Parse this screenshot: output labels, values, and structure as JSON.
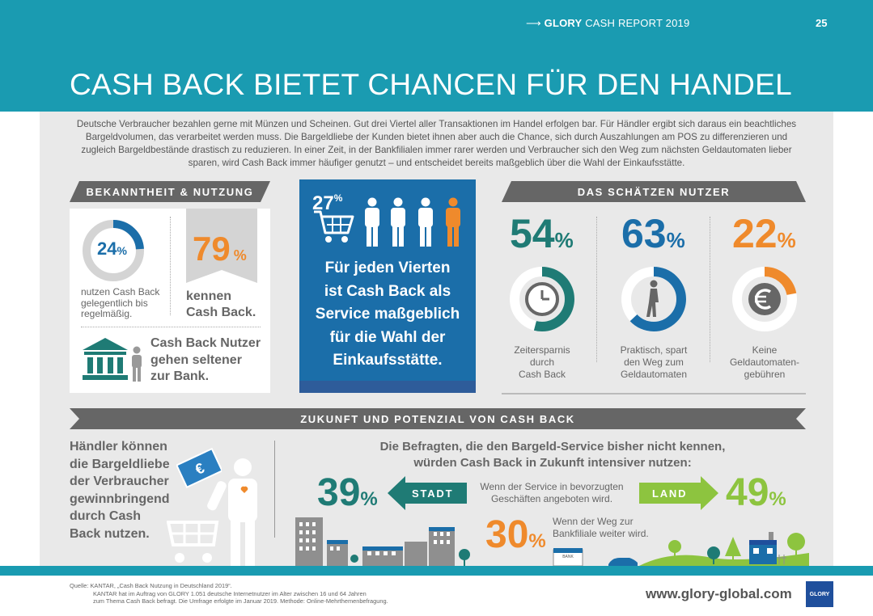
{
  "header": {
    "arrow": "⟶",
    "report_brand": "GLORY",
    "report_rest": "CASH REPORT 2019",
    "page_number": "25",
    "title": "CASH BACK BIETET CHANCEN FÜR DEN HANDEL"
  },
  "intro": "Deutsche Verbraucher bezahlen gerne mit Münzen und Scheinen. Gut drei Viertel aller Transaktionen im Handel erfolgen bar. Für Händler ergibt sich daraus ein beachtliches Bargeldvolumen, das verarbeitet werden muss. Die Bargeldliebe der Kunden bietet ihnen aber auch die Chance, sich durch Auszahlungen am POS zu differenzieren und zugleich Bargeldbestände drastisch zu reduzieren. In einer Zeit, in der Bankfilialen immer rarer werden und Verbraucher sich den Weg zum nächsten Geldautomaten lieber sparen, wird Cash Back immer häufiger genutzt – und entscheidet bereits maßgeblich über die Wahl der Einkaufsstätte.",
  "bekanntheit": {
    "heading": "BEKANNTHEIT & NUTZUNG",
    "usage_pct": "24",
    "usage_fraction": 0.24,
    "usage_pct_sign": "%",
    "usage_text": [
      "nutzen Cash Back",
      "gelegentlich bis",
      "regelmäßig."
    ],
    "known_pct": "79",
    "known_pct_sign": "%",
    "known_text": [
      "kennen",
      "Cash Back."
    ],
    "bank_text": [
      "Cash Back Nutzer",
      "gehen seltener",
      "zur Bank."
    ]
  },
  "blue_box": {
    "pct": "27",
    "pct_sign": "%",
    "text": [
      "Für jeden Vierten",
      "ist Cash Back als",
      "Service maßgeblich",
      "für die Wahl der",
      "Einkaufsstätte."
    ]
  },
  "schaetzen": {
    "heading": "DAS SCHÄTZEN NUTZER",
    "items": [
      {
        "pct": "54",
        "sign": "%",
        "fraction": 0.54,
        "color": "#1f7b75",
        "icon": "clock-icon",
        "label": [
          "Zeitersparnis",
          "durch",
          "Cash Back"
        ]
      },
      {
        "pct": "63",
        "sign": "%",
        "fraction": 0.63,
        "color": "#1b6ea9",
        "icon": "walking-person-icon",
        "label": [
          "Praktisch, spart",
          "den Weg zum",
          "Geldautomaten"
        ]
      },
      {
        "pct": "22",
        "sign": "%",
        "fraction": 0.22,
        "color": "#ef8a2c",
        "icon": "euro-icon",
        "label": [
          "Keine",
          "Geldautomaten-",
          "gebühren"
        ]
      }
    ]
  },
  "zukunft": {
    "heading": "ZUKUNFT UND POTENZIAL VON CASH BACK",
    "left_text": [
      "Händler können",
      "die Bargeldliebe",
      "der Verbraucher",
      "gewinnbringend",
      "durch Cash",
      "Back nutzen."
    ],
    "headline": [
      "Die Befragten, die den Bargeld-Service bisher nicht kennen,",
      "würden Cash Back in Zukunft intensiver nutzen:"
    ],
    "stadt_pct": "39",
    "stadt_label": "STADT",
    "land_pct": "49",
    "land_label": "LAND",
    "pct_sign": "%",
    "service_text": [
      "Wenn der Service in bevorzugten",
      "Geschäften angeboten wird."
    ],
    "bank_pct": "30",
    "bank_text": [
      "Wenn der Weg zur",
      "Bankfiliale weiter wird."
    ],
    "bank_sign": "BANK"
  },
  "footer": {
    "source": [
      "Quelle: KANTAR, „Cash Back Nutzung in Deutschland 2019“.",
      "KANTAR hat im Auftrag von GLORY 1.051 deutsche Internetnutzer im Alter zwischen 16 und 64 Jahren",
      "zum Thema Cash Back befragt. Die Umfrage erfolgte im Januar 2019. Methode: Online-Mehrthemenbefragung."
    ],
    "website": "www.glory-global.com",
    "logo_text": "GLORY"
  },
  "colors": {
    "teal_header": "#1a9bb1",
    "dark_teal": "#1f7b75",
    "blue": "#1b6ea9",
    "orange": "#ef8a2c",
    "green": "#8dc43f",
    "grey": "#666666"
  }
}
